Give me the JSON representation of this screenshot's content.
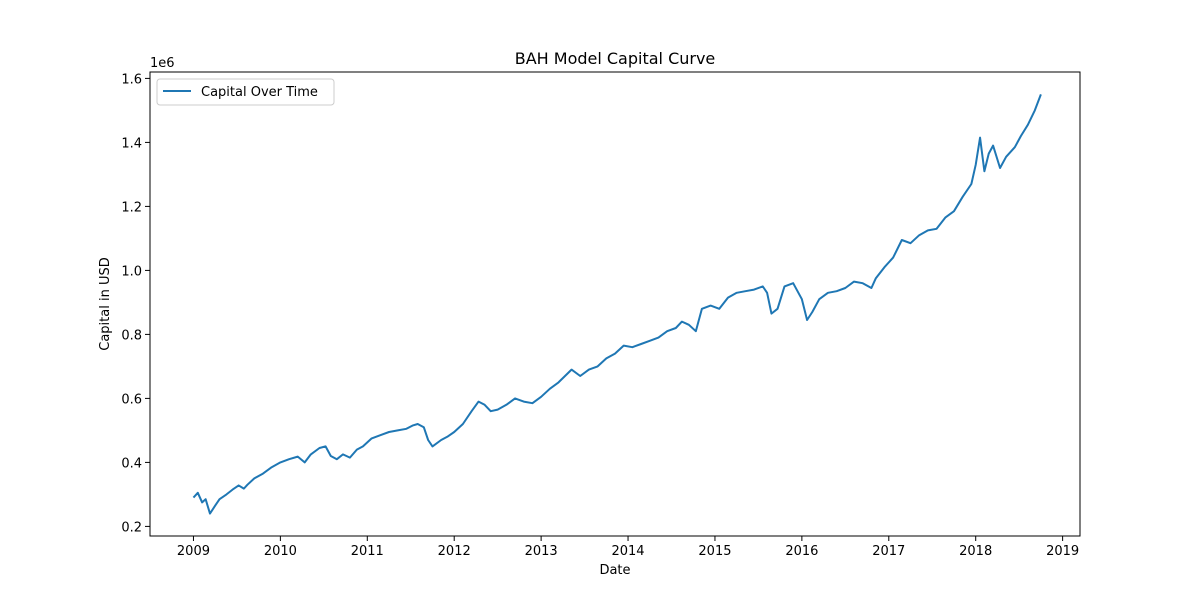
{
  "chart_data": {
    "type": "line",
    "title": "BAH Model Capital Curve",
    "xlabel": "Date",
    "ylabel": "Capital in USD",
    "y_multiplier_label": "1e6",
    "xlim": [
      2008.5,
      2019.2
    ],
    "ylim": [
      0.17,
      1.62
    ],
    "x_ticks": [
      2009,
      2010,
      2011,
      2012,
      2013,
      2014,
      2015,
      2016,
      2017,
      2018,
      2019
    ],
    "x_tick_labels": [
      "2009",
      "2010",
      "2011",
      "2012",
      "2013",
      "2014",
      "2015",
      "2016",
      "2017",
      "2018",
      "2019"
    ],
    "y_ticks": [
      0.2,
      0.4,
      0.6,
      0.8,
      1.0,
      1.2,
      1.4,
      1.6
    ],
    "y_tick_labels": [
      "0.2",
      "0.4",
      "0.6",
      "0.8",
      "1.0",
      "1.2",
      "1.4",
      "1.6"
    ],
    "grid": false,
    "legend": "top-left",
    "series": [
      {
        "name": "Capital Over Time",
        "color": "#1f77b4",
        "points": [
          [
            2009.0,
            0.29
          ],
          [
            2009.05,
            0.305
          ],
          [
            2009.1,
            0.275
          ],
          [
            2009.14,
            0.285
          ],
          [
            2009.19,
            0.24
          ],
          [
            2009.25,
            0.265
          ],
          [
            2009.3,
            0.285
          ],
          [
            2009.38,
            0.3
          ],
          [
            2009.45,
            0.315
          ],
          [
            2009.52,
            0.328
          ],
          [
            2009.58,
            0.318
          ],
          [
            2009.62,
            0.33
          ],
          [
            2009.7,
            0.35
          ],
          [
            2009.8,
            0.365
          ],
          [
            2009.9,
            0.385
          ],
          [
            2010.0,
            0.4
          ],
          [
            2010.1,
            0.41
          ],
          [
            2010.2,
            0.418
          ],
          [
            2010.28,
            0.4
          ],
          [
            2010.35,
            0.425
          ],
          [
            2010.45,
            0.445
          ],
          [
            2010.52,
            0.45
          ],
          [
            2010.58,
            0.42
          ],
          [
            2010.65,
            0.41
          ],
          [
            2010.72,
            0.425
          ],
          [
            2010.8,
            0.415
          ],
          [
            2010.88,
            0.44
          ],
          [
            2010.95,
            0.45
          ],
          [
            2011.05,
            0.475
          ],
          [
            2011.15,
            0.485
          ],
          [
            2011.25,
            0.495
          ],
          [
            2011.35,
            0.5
          ],
          [
            2011.45,
            0.505
          ],
          [
            2011.52,
            0.515
          ],
          [
            2011.58,
            0.52
          ],
          [
            2011.65,
            0.51
          ],
          [
            2011.7,
            0.47
          ],
          [
            2011.75,
            0.45
          ],
          [
            2011.85,
            0.47
          ],
          [
            2011.92,
            0.48
          ],
          [
            2012.0,
            0.495
          ],
          [
            2012.1,
            0.52
          ],
          [
            2012.2,
            0.56
          ],
          [
            2012.28,
            0.59
          ],
          [
            2012.35,
            0.58
          ],
          [
            2012.42,
            0.56
          ],
          [
            2012.5,
            0.565
          ],
          [
            2012.6,
            0.58
          ],
          [
            2012.7,
            0.6
          ],
          [
            2012.8,
            0.59
          ],
          [
            2012.9,
            0.585
          ],
          [
            2013.0,
            0.605
          ],
          [
            2013.1,
            0.63
          ],
          [
            2013.2,
            0.65
          ],
          [
            2013.35,
            0.69
          ],
          [
            2013.45,
            0.67
          ],
          [
            2013.55,
            0.69
          ],
          [
            2013.65,
            0.7
          ],
          [
            2013.75,
            0.725
          ],
          [
            2013.85,
            0.74
          ],
          [
            2013.95,
            0.765
          ],
          [
            2014.05,
            0.76
          ],
          [
            2014.15,
            0.77
          ],
          [
            2014.25,
            0.78
          ],
          [
            2014.35,
            0.79
          ],
          [
            2014.45,
            0.81
          ],
          [
            2014.55,
            0.82
          ],
          [
            2014.62,
            0.84
          ],
          [
            2014.7,
            0.83
          ],
          [
            2014.78,
            0.81
          ],
          [
            2014.85,
            0.88
          ],
          [
            2014.95,
            0.89
          ],
          [
            2015.05,
            0.88
          ],
          [
            2015.15,
            0.915
          ],
          [
            2015.25,
            0.93
          ],
          [
            2015.35,
            0.935
          ],
          [
            2015.45,
            0.94
          ],
          [
            2015.55,
            0.95
          ],
          [
            2015.6,
            0.93
          ],
          [
            2015.65,
            0.865
          ],
          [
            2015.72,
            0.88
          ],
          [
            2015.8,
            0.95
          ],
          [
            2015.9,
            0.96
          ],
          [
            2016.0,
            0.91
          ],
          [
            2016.06,
            0.845
          ],
          [
            2016.12,
            0.87
          ],
          [
            2016.2,
            0.91
          ],
          [
            2016.3,
            0.93
          ],
          [
            2016.4,
            0.935
          ],
          [
            2016.5,
            0.945
          ],
          [
            2016.6,
            0.965
          ],
          [
            2016.7,
            0.96
          ],
          [
            2016.8,
            0.945
          ],
          [
            2016.85,
            0.975
          ],
          [
            2016.95,
            1.01
          ],
          [
            2017.05,
            1.04
          ],
          [
            2017.15,
            1.095
          ],
          [
            2017.25,
            1.085
          ],
          [
            2017.35,
            1.11
          ],
          [
            2017.45,
            1.125
          ],
          [
            2017.55,
            1.13
          ],
          [
            2017.65,
            1.165
          ],
          [
            2017.75,
            1.185
          ],
          [
            2017.85,
            1.23
          ],
          [
            2017.95,
            1.27
          ],
          [
            2018.0,
            1.33
          ],
          [
            2018.05,
            1.415
          ],
          [
            2018.1,
            1.31
          ],
          [
            2018.15,
            1.365
          ],
          [
            2018.2,
            1.39
          ],
          [
            2018.28,
            1.32
          ],
          [
            2018.35,
            1.355
          ],
          [
            2018.45,
            1.385
          ],
          [
            2018.52,
            1.42
          ],
          [
            2018.6,
            1.455
          ],
          [
            2018.68,
            1.5
          ],
          [
            2018.75,
            1.55
          ]
        ]
      }
    ]
  }
}
